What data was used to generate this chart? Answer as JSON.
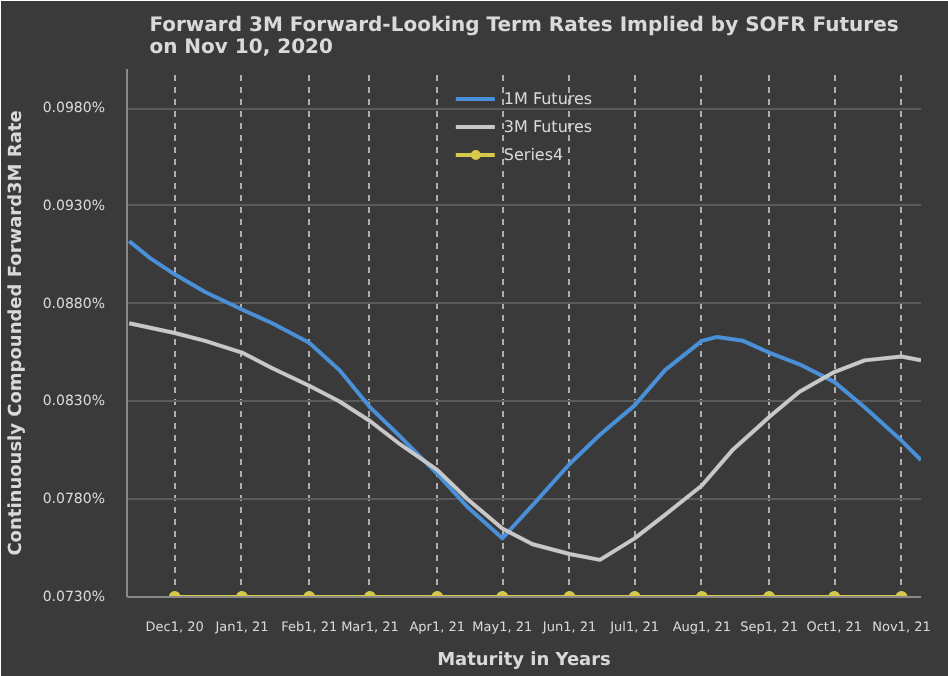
{
  "chart_data": {
    "type": "line",
    "title": "Forward 3M Forward-Looking Term Rates Implied by SOFR Futures on Nov 10, 2020",
    "xlabel": "Maturity in Years",
    "ylabel": "Continuously Compounded Forward3M Rate",
    "xlim": [
      "2020-11-09",
      "2021-11-10"
    ],
    "xticks": [
      {
        "value": "2020-12-01",
        "label": "Dec1, 20"
      },
      {
        "value": "2021-01-01",
        "label": "Jan1, 21"
      },
      {
        "value": "2021-02-01",
        "label": "Feb1, 21"
      },
      {
        "value": "2021-03-01",
        "label": "Mar1, 21"
      },
      {
        "value": "2021-04-01",
        "label": "Apr1, 21"
      },
      {
        "value": "2021-05-01",
        "label": "May1, 21"
      },
      {
        "value": "2021-06-01",
        "label": "Jun1, 21"
      },
      {
        "value": "2021-07-01",
        "label": "Jul1, 21"
      },
      {
        "value": "2021-08-01",
        "label": "Aug1, 21"
      },
      {
        "value": "2021-09-01",
        "label": "Sep1, 21"
      },
      {
        "value": "2021-10-01",
        "label": "Oct1, 21"
      },
      {
        "value": "2021-11-01",
        "label": "Nov1, 21"
      }
    ],
    "ylim": [
      0.073,
      0.1
    ],
    "yticks": [
      {
        "value": 0.073,
        "label": "0.0730%"
      },
      {
        "value": 0.078,
        "label": "0.0780%"
      },
      {
        "value": 0.083,
        "label": "0.0830%"
      },
      {
        "value": 0.088,
        "label": "0.0880%"
      },
      {
        "value": 0.093,
        "label": "0.0930%"
      },
      {
        "value": 0.098,
        "label": "0.0980%"
      }
    ],
    "grid": true,
    "legend": "top",
    "series": [
      {
        "name": "1M Futures",
        "color": "#4a90d9",
        "marker": "none",
        "x": [
          "2020-11-10",
          "2020-11-20",
          "2020-12-01",
          "2020-12-15",
          "2021-01-01",
          "2021-01-15",
          "2021-02-01",
          "2021-02-15",
          "2021-03-01",
          "2021-03-15",
          "2021-04-01",
          "2021-04-15",
          "2021-05-01",
          "2021-05-15",
          "2021-06-01",
          "2021-06-15",
          "2021-07-01",
          "2021-07-15",
          "2021-08-01",
          "2021-08-08",
          "2021-08-20",
          "2021-09-01",
          "2021-09-15",
          "2021-10-01",
          "2021-10-15",
          "2021-11-01",
          "2021-11-10"
        ],
        "values": [
          0.0912,
          0.0903,
          0.0895,
          0.0886,
          0.0877,
          0.087,
          0.086,
          0.0846,
          0.0827,
          0.0812,
          0.0793,
          0.0776,
          0.076,
          0.0777,
          0.0798,
          0.0813,
          0.0828,
          0.0846,
          0.0861,
          0.0863,
          0.0861,
          0.0855,
          0.0849,
          0.084,
          0.0827,
          0.081,
          0.08
        ]
      },
      {
        "name": "3M Futures",
        "color": "#c8c8c8",
        "marker": "none",
        "x": [
          "2020-11-10",
          "2020-12-01",
          "2020-12-15",
          "2021-01-01",
          "2021-01-15",
          "2021-02-01",
          "2021-02-15",
          "2021-03-01",
          "2021-03-15",
          "2021-04-01",
          "2021-04-15",
          "2021-05-01",
          "2021-05-15",
          "2021-06-01",
          "2021-06-15",
          "2021-07-01",
          "2021-07-15",
          "2021-08-01",
          "2021-08-15",
          "2021-09-01",
          "2021-09-15",
          "2021-10-01",
          "2021-10-15",
          "2021-11-01",
          "2021-11-10"
        ],
        "values": [
          0.087,
          0.0865,
          0.0861,
          0.0855,
          0.0847,
          0.0838,
          0.083,
          0.082,
          0.0808,
          0.0795,
          0.078,
          0.0765,
          0.0757,
          0.0752,
          0.0749,
          0.076,
          0.0772,
          0.0787,
          0.0805,
          0.0822,
          0.0835,
          0.0845,
          0.0851,
          0.0853,
          0.0851
        ]
      },
      {
        "name": "Series4",
        "color": "#d6c94a",
        "marker": "circle",
        "x": [
          "2020-12-01",
          "2021-01-01",
          "2021-02-01",
          "2021-03-01",
          "2021-04-01",
          "2021-05-01",
          "2021-06-01",
          "2021-07-01",
          "2021-08-01",
          "2021-09-01",
          "2021-10-01",
          "2021-11-01"
        ],
        "values": [
          0.073,
          0.073,
          0.073,
          0.073,
          0.073,
          0.073,
          0.073,
          0.073,
          0.073,
          0.073,
          0.073,
          0.073
        ]
      }
    ]
  }
}
